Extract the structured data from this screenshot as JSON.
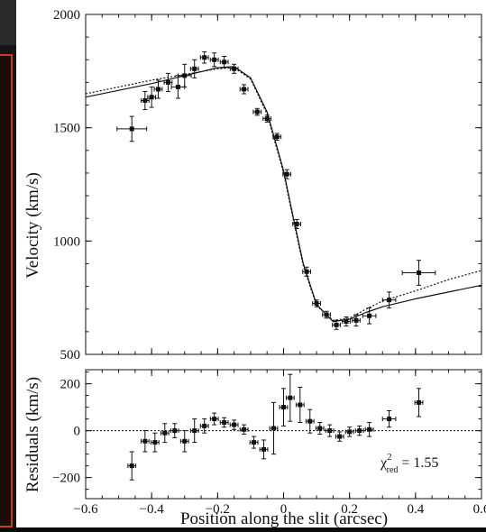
{
  "chart_data": [
    {
      "type": "scatter",
      "ylabel": "Velocity (km/s)",
      "xlim": [
        -0.6,
        0.6
      ],
      "ylim": [
        500,
        2000
      ],
      "yticks": [
        500,
        1000,
        1500,
        2000
      ],
      "ytick_labels": [
        "500",
        "1000",
        "1500",
        "2000"
      ],
      "xticks": [
        -0.6,
        -0.4,
        -0.2,
        0,
        0.2,
        0.4,
        0.6
      ],
      "points": [
        {
          "x": -0.46,
          "y": 1495,
          "xerr": 0.045,
          "yerr": 55
        },
        {
          "x": -0.42,
          "y": 1620,
          "xerr": 0.012,
          "yerr": 40
        },
        {
          "x": -0.4,
          "y": 1635,
          "xerr": 0.012,
          "yerr": 45
        },
        {
          "x": -0.38,
          "y": 1670,
          "xerr": 0.012,
          "yerr": 40
        },
        {
          "x": -0.35,
          "y": 1700,
          "xerr": 0.012,
          "yerr": 40
        },
        {
          "x": -0.32,
          "y": 1680,
          "xerr": 0.02,
          "yerr": 50
        },
        {
          "x": -0.3,
          "y": 1730,
          "xerr": 0.02,
          "yerr": 50
        },
        {
          "x": -0.27,
          "y": 1760,
          "xerr": 0.012,
          "yerr": 40
        },
        {
          "x": -0.24,
          "y": 1810,
          "xerr": 0.012,
          "yerr": 25
        },
        {
          "x": -0.21,
          "y": 1800,
          "xerr": 0.012,
          "yerr": 30
        },
        {
          "x": -0.18,
          "y": 1790,
          "xerr": 0.012,
          "yerr": 25
        },
        {
          "x": -0.15,
          "y": 1760,
          "xerr": 0.012,
          "yerr": 20
        },
        {
          "x": -0.12,
          "y": 1670,
          "xerr": 0.012,
          "yerr": 20
        },
        {
          "x": -0.08,
          "y": 1570,
          "xerr": 0.012,
          "yerr": 15
        },
        {
          "x": -0.05,
          "y": 1540,
          "xerr": 0.012,
          "yerr": 15
        },
        {
          "x": -0.02,
          "y": 1460,
          "xerr": 0.012,
          "yerr": 15
        },
        {
          "x": 0.01,
          "y": 1295,
          "xerr": 0.012,
          "yerr": 20
        },
        {
          "x": 0.04,
          "y": 1075,
          "xerr": 0.012,
          "yerr": 20
        },
        {
          "x": 0.07,
          "y": 865,
          "xerr": 0.012,
          "yerr": 20
        },
        {
          "x": 0.1,
          "y": 725,
          "xerr": 0.012,
          "yerr": 15
        },
        {
          "x": 0.13,
          "y": 675,
          "xerr": 0.012,
          "yerr": 15
        },
        {
          "x": 0.16,
          "y": 630,
          "xerr": 0.012,
          "yerr": 20
        },
        {
          "x": 0.19,
          "y": 645,
          "xerr": 0.012,
          "yerr": 20
        },
        {
          "x": 0.22,
          "y": 650,
          "xerr": 0.012,
          "yerr": 25
        },
        {
          "x": 0.26,
          "y": 670,
          "xerr": 0.02,
          "yerr": 35
        },
        {
          "x": 0.32,
          "y": 740,
          "xerr": 0.02,
          "yerr": 35
        },
        {
          "x": 0.41,
          "y": 860,
          "xerr": 0.05,
          "yerr": 55
        }
      ],
      "models": [
        {
          "style": "solid",
          "points": [
            [
              -0.6,
              1635
            ],
            [
              -0.5,
              1665
            ],
            [
              -0.4,
              1695
            ],
            [
              -0.3,
              1730
            ],
            [
              -0.2,
              1765
            ],
            [
              -0.15,
              1770
            ],
            [
              -0.1,
              1720
            ],
            [
              -0.05,
              1570
            ],
            [
              0,
              1310
            ],
            [
              0.03,
              1100
            ],
            [
              0.06,
              900
            ],
            [
              0.1,
              720
            ],
            [
              0.15,
              645
            ],
            [
              0.2,
              655
            ],
            [
              0.25,
              685
            ],
            [
              0.3,
              710
            ],
            [
              0.4,
              745
            ],
            [
              0.5,
              775
            ],
            [
              0.6,
              805
            ]
          ]
        },
        {
          "style": "dotted",
          "points": [
            [
              -0.6,
              1650
            ],
            [
              -0.5,
              1680
            ],
            [
              -0.4,
              1710
            ],
            [
              -0.3,
              1735
            ],
            [
              -0.2,
              1760
            ],
            [
              -0.15,
              1765
            ],
            [
              -0.1,
              1715
            ],
            [
              -0.05,
              1560
            ],
            [
              0,
              1300
            ],
            [
              0.03,
              1090
            ],
            [
              0.06,
              890
            ],
            [
              0.1,
              715
            ],
            [
              0.15,
              650
            ],
            [
              0.2,
              660
            ],
            [
              0.25,
              700
            ],
            [
              0.3,
              735
            ],
            [
              0.4,
              780
            ],
            [
              0.5,
              830
            ],
            [
              0.6,
              870
            ]
          ]
        }
      ]
    },
    {
      "type": "scatter",
      "xlabel": "Position along the slit (arcsec)",
      "ylabel": "Residuals (km/s)",
      "xlim": [
        -0.6,
        0.6
      ],
      "ylim": [
        -290,
        260
      ],
      "yticks": [
        -200,
        0,
        200
      ],
      "ytick_labels": [
        "−200",
        "0",
        "200"
      ],
      "xticks": [
        -0.6,
        -0.4,
        -0.2,
        0,
        0.2,
        0.4,
        0.6
      ],
      "xtick_labels": [
        "−0.6",
        "−0.4",
        "−0.2",
        "0",
        "0.2",
        "0.4",
        "0.6"
      ],
      "reference_line": 0,
      "annotation": {
        "main": "χ",
        "sup": "2",
        "sub": "red",
        "rest": " = 1.55"
      },
      "points": [
        {
          "x": -0.46,
          "y": -150,
          "xerr": 0.012,
          "yerr": 60
        },
        {
          "x": -0.42,
          "y": -45,
          "xerr": 0.012,
          "yerr": 45
        },
        {
          "x": -0.39,
          "y": -50,
          "xerr": 0.012,
          "yerr": 40
        },
        {
          "x": -0.36,
          "y": -10,
          "xerr": 0.012,
          "yerr": 40
        },
        {
          "x": -0.33,
          "y": 0,
          "xerr": 0.012,
          "yerr": 30
        },
        {
          "x": -0.3,
          "y": -45,
          "xerr": 0.012,
          "yerr": 45
        },
        {
          "x": -0.27,
          "y": 0,
          "xerr": 0.012,
          "yerr": 50
        },
        {
          "x": -0.24,
          "y": 20,
          "xerr": 0.012,
          "yerr": 30
        },
        {
          "x": -0.21,
          "y": 50,
          "xerr": 0.012,
          "yerr": 25
        },
        {
          "x": -0.18,
          "y": 35,
          "xerr": 0.012,
          "yerr": 20
        },
        {
          "x": -0.15,
          "y": 25,
          "xerr": 0.012,
          "yerr": 20
        },
        {
          "x": -0.12,
          "y": 5,
          "xerr": 0.012,
          "yerr": 20
        },
        {
          "x": -0.09,
          "y": -50,
          "xerr": 0.012,
          "yerr": 25
        },
        {
          "x": -0.06,
          "y": -80,
          "xerr": 0.012,
          "yerr": 40
        },
        {
          "x": -0.03,
          "y": 10,
          "xerr": 0.012,
          "yerr": 110
        },
        {
          "x": 0.0,
          "y": 100,
          "xerr": 0.012,
          "yerr": 80
        },
        {
          "x": 0.02,
          "y": 140,
          "xerr": 0.012,
          "yerr": 100
        },
        {
          "x": 0.05,
          "y": 110,
          "xerr": 0.012,
          "yerr": 75
        },
        {
          "x": 0.08,
          "y": 40,
          "xerr": 0.012,
          "yerr": 50
        },
        {
          "x": 0.11,
          "y": 10,
          "xerr": 0.012,
          "yerr": 25
        },
        {
          "x": 0.14,
          "y": 0,
          "xerr": 0.012,
          "yerr": 25
        },
        {
          "x": 0.17,
          "y": -25,
          "xerr": 0.012,
          "yerr": 20
        },
        {
          "x": 0.2,
          "y": -5,
          "xerr": 0.012,
          "yerr": 20
        },
        {
          "x": 0.23,
          "y": 0,
          "xerr": 0.012,
          "yerr": 20
        },
        {
          "x": 0.26,
          "y": 5,
          "xerr": 0.012,
          "yerr": 30
        },
        {
          "x": 0.32,
          "y": 50,
          "xerr": 0.02,
          "yerr": 35
        },
        {
          "x": 0.41,
          "y": 120,
          "xerr": 0.012,
          "yerr": 60
        }
      ]
    }
  ]
}
